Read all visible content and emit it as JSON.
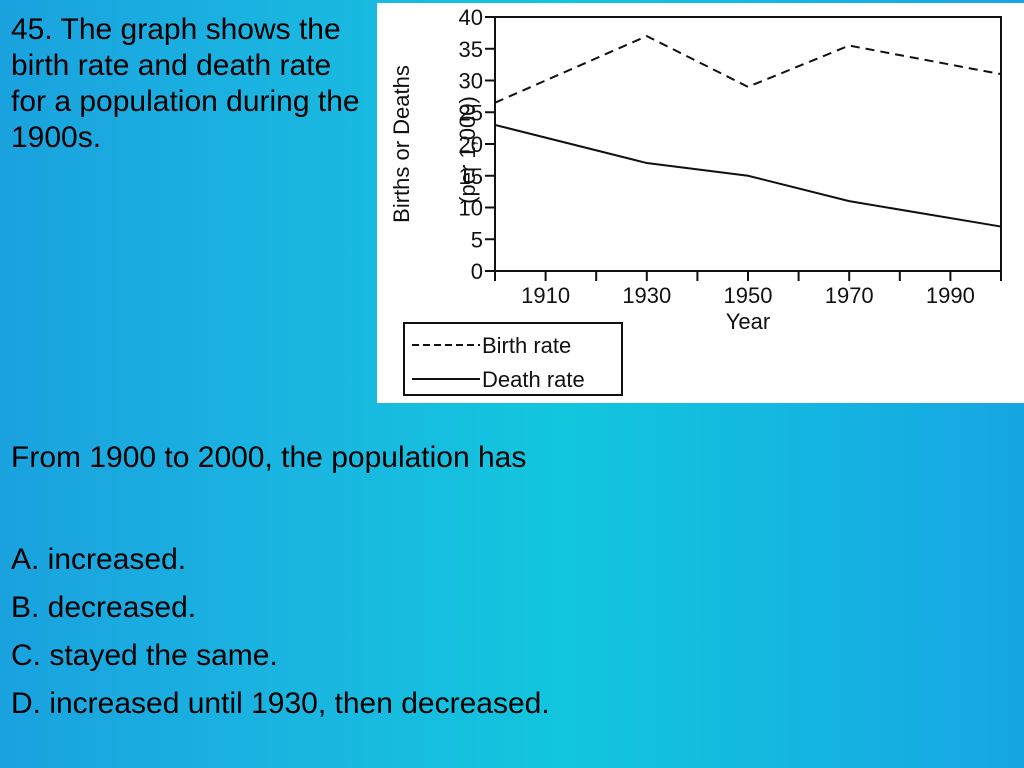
{
  "question": {
    "text": "45. The graph shows the birth rate and death rate for a population during the 1900s."
  },
  "prompt": "From 1900 to 2000, the population has",
  "choices": [
    {
      "label": "A. increased."
    },
    {
      "label": "B. decreased."
    },
    {
      "label": "C. stayed the same."
    },
    {
      "label": "D. increased until 1930, then decreased."
    }
  ],
  "chart_data": {
    "type": "line",
    "xlabel": "Year",
    "ylabel": "Births or Deaths",
    "ylabel_sub": "(per 1,000)",
    "xlim": [
      1900,
      2000
    ],
    "ylim": [
      0,
      40
    ],
    "x_ticks": [
      1910,
      1930,
      1950,
      1970,
      1990
    ],
    "x_minor_ticks": [
      1900,
      1910,
      1920,
      1930,
      1940,
      1950,
      1960,
      1970,
      1980,
      1990,
      2000
    ],
    "y_ticks": [
      0,
      5,
      10,
      15,
      20,
      25,
      30,
      35,
      40
    ],
    "legend_position": "bottom-left, below plot",
    "series": [
      {
        "name": "Birth rate",
        "style": "dashed",
        "x": [
          1900,
          1930,
          1950,
          1970,
          2000
        ],
        "y": [
          26.5,
          37,
          29,
          35.5,
          31
        ]
      },
      {
        "name": "Death rate",
        "style": "solid",
        "x": [
          1900,
          1930,
          1950,
          1970,
          2000
        ],
        "y": [
          23,
          17,
          15,
          11,
          7
        ]
      }
    ]
  }
}
